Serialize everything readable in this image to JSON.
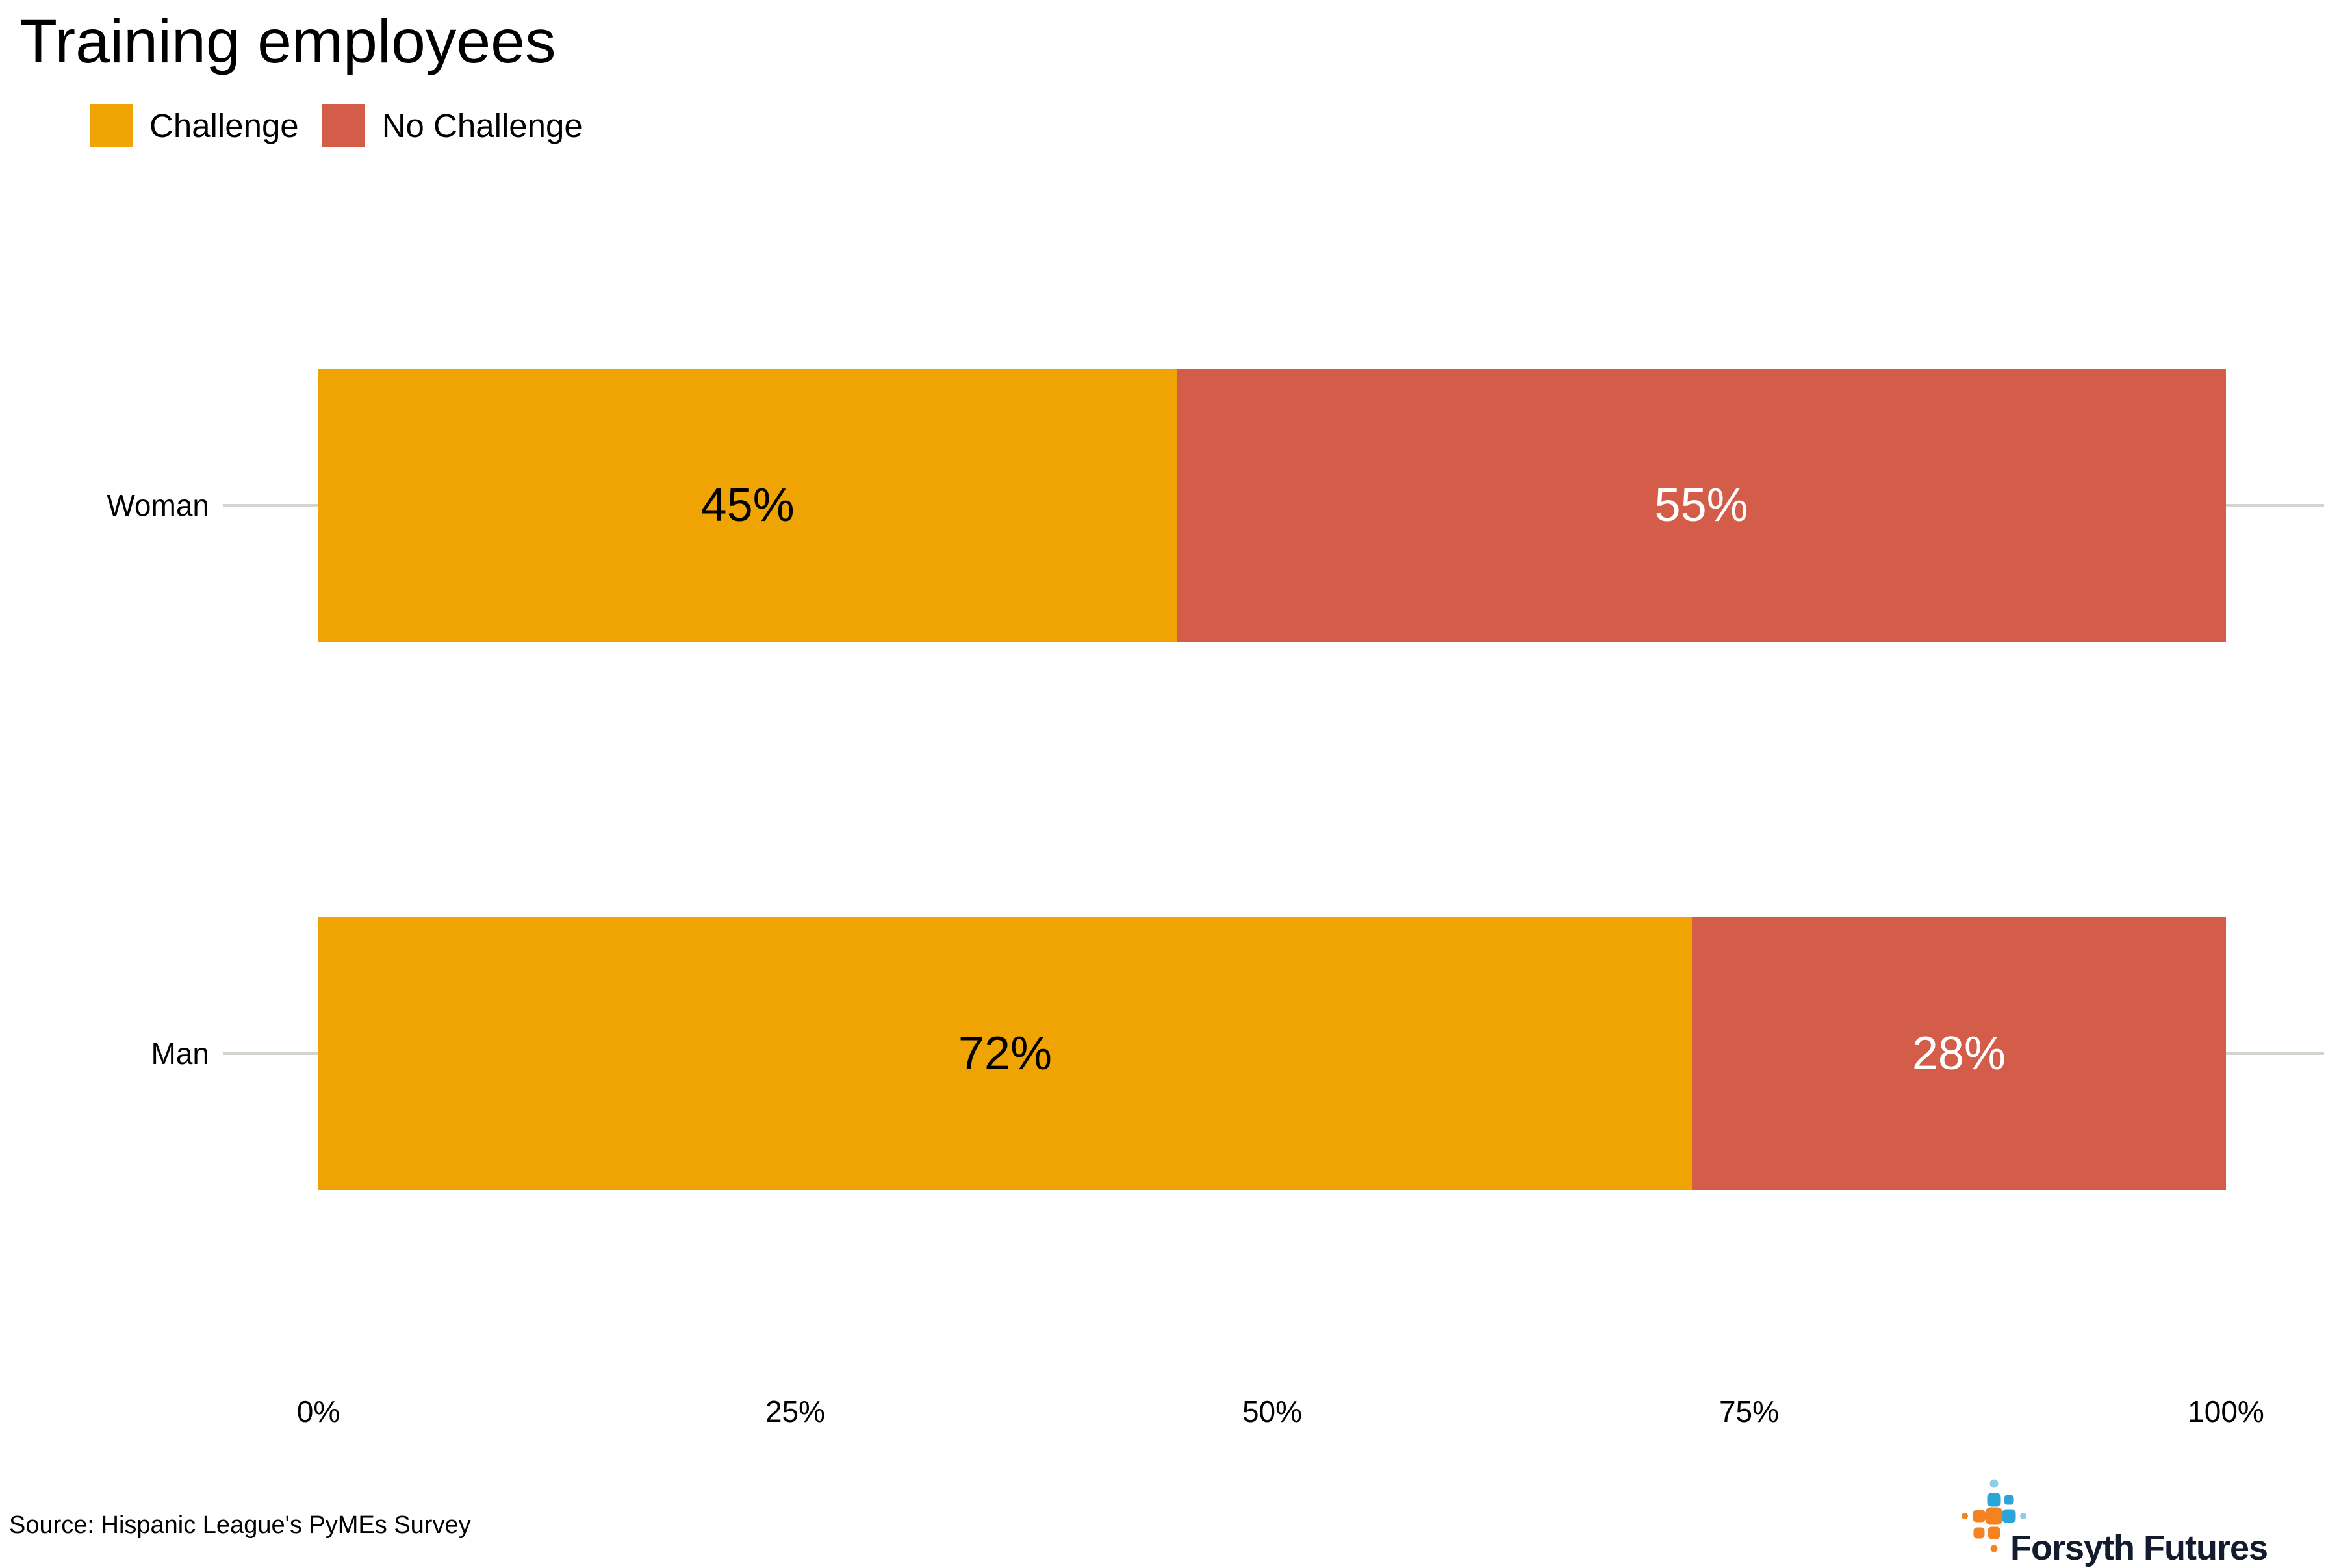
{
  "title": "Training employees",
  "legend": {
    "items": [
      {
        "label": "Challenge",
        "color": "#F0A404"
      },
      {
        "label": "No Challenge",
        "color": "#D45D49"
      }
    ]
  },
  "chart_data": {
    "type": "bar",
    "orientation": "horizontal",
    "stacked": true,
    "title": "Training employees",
    "categories": [
      "Woman",
      "Man"
    ],
    "series": [
      {
        "name": "Challenge",
        "color": "#F0A404",
        "values": [
          45,
          72
        ]
      },
      {
        "name": "No Challenge",
        "color": "#D45D49",
        "values": [
          55,
          28
        ]
      }
    ],
    "bar_labels": [
      [
        "45%",
        "55%"
      ],
      [
        "72%",
        "28%"
      ]
    ],
    "bar_label_colors": [
      [
        "#000000",
        "#FFFFFF"
      ],
      [
        "#000000",
        "#FFFFFF"
      ]
    ],
    "xlim": [
      0,
      100
    ],
    "x_ticks": [
      "0%",
      "25%",
      "50%",
      "75%",
      "100%"
    ],
    "grid": "category-reference-lines",
    "legend_position": "top-left"
  },
  "source": "Source: Hispanic League's PyMEs Survey",
  "logo": {
    "text": "Forsyth Futures"
  }
}
